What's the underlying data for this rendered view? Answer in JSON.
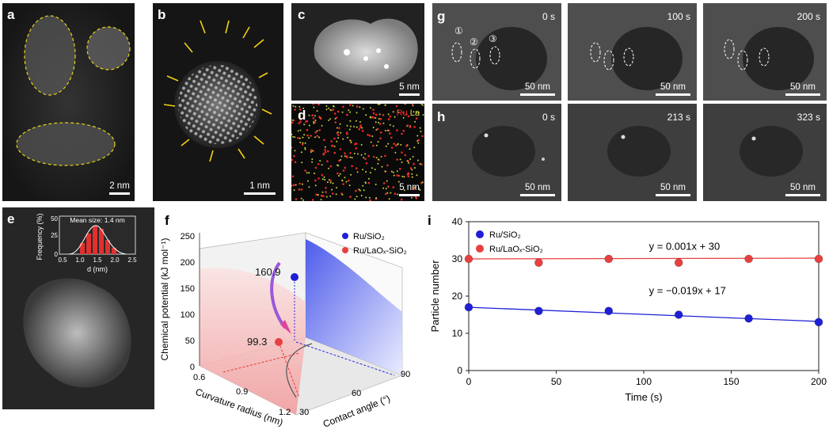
{
  "panels": {
    "a": {
      "label": "a",
      "scale": "2 nm"
    },
    "b": {
      "label": "b",
      "scale": "1 nm"
    },
    "c": {
      "label": "c",
      "scale": "5 nm"
    },
    "d": {
      "label": "d",
      "scale": "5 nm",
      "legend_ru": "Ru",
      "legend_la": "La"
    },
    "e": {
      "label": "e",
      "inset": {
        "title": "Mean size: 1.4 nm",
        "ylabel": "Frequency (%)",
        "xlabel": "d (nm)",
        "yticks": [
          "0",
          "25",
          "50"
        ],
        "xticks": [
          "0.5",
          "1.0",
          "1.5",
          "2.0",
          "2.5"
        ]
      }
    },
    "g": {
      "label": "g",
      "frames": [
        {
          "time": "0 s",
          "scale": "50 nm"
        },
        {
          "time": "100 s",
          "scale": "50 nm"
        },
        {
          "time": "200 s",
          "scale": "50 nm"
        }
      ],
      "markers": [
        "①",
        "②",
        "③"
      ]
    },
    "h": {
      "label": "h",
      "frames": [
        {
          "time": "0 s",
          "scale": "50 nm"
        },
        {
          "time": "213 s",
          "scale": "50 nm"
        },
        {
          "time": "323 s",
          "scale": "50 nm"
        }
      ]
    },
    "f": {
      "label": "f",
      "zlabel": "Chemical potential (kJ mol⁻¹)",
      "xlabel": "Curvature radius (nm)",
      "ylabel": "Contact angle (°)",
      "zticks": [
        "0",
        "50",
        "100",
        "150",
        "200",
        "250"
      ],
      "xticks": [
        "0.6",
        "0.9",
        "1.2"
      ],
      "yticks": [
        "30",
        "60",
        "90"
      ],
      "legend": [
        "Ru/SiO₂",
        "Ru/LaOₓ-SiO₂"
      ],
      "annot_high": "160.9",
      "annot_low": "99.3",
      "colors": {
        "ru_sio2": "#2a2ae0",
        "ru_laox": "#e53a3a",
        "arrow": "#9a58d8"
      }
    },
    "i": {
      "label": "i"
    }
  },
  "chart_data": {
    "type": "scatter",
    "xlabel": "Time (s)",
    "ylabel": "Particle number",
    "xlim": [
      0,
      200
    ],
    "ylim": [
      0,
      40
    ],
    "xticks": [
      0,
      50,
      100,
      150,
      200
    ],
    "yticks": [
      0,
      10,
      20,
      30,
      40
    ],
    "legend_placement": "top-left",
    "series": [
      {
        "name": "Ru/SiO₂",
        "color": "#1f1fd6",
        "x": [
          0,
          40,
          80,
          120,
          160,
          200
        ],
        "y": [
          17,
          16,
          16,
          15,
          14,
          13
        ],
        "fit": {
          "equation": "y = −0.019x + 17",
          "slope": -0.019,
          "intercept": 17
        }
      },
      {
        "name": "Ru/LaOₓ-SiO₂",
        "color": "#e84040",
        "x": [
          0,
          40,
          80,
          120,
          160,
          200
        ],
        "y": [
          30,
          29,
          30,
          29,
          30,
          30
        ],
        "fit": {
          "equation": "y = 0.001x + 30",
          "slope": 0.001,
          "intercept": 30
        }
      }
    ]
  }
}
